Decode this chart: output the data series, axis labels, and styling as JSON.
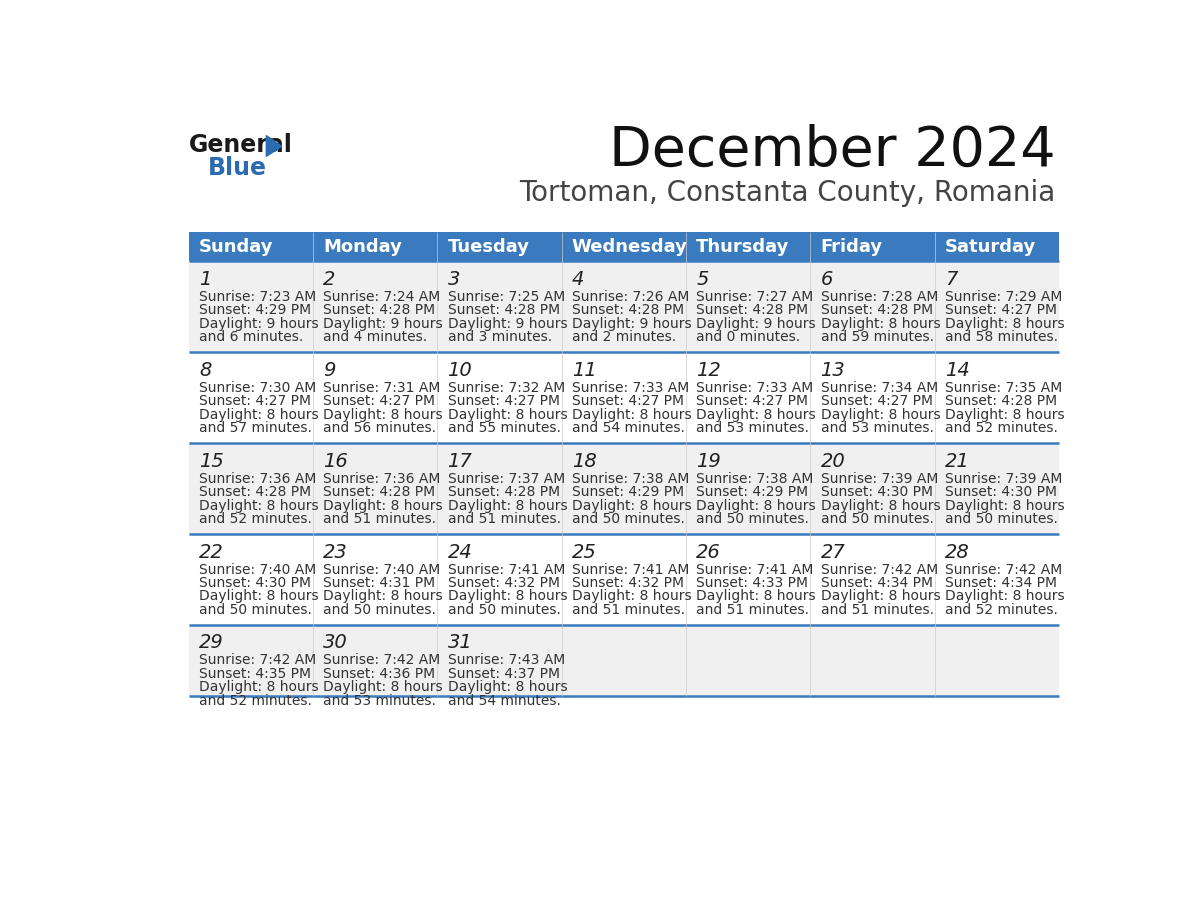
{
  "title": "December 2024",
  "subtitle": "Tortoman, Constanta County, Romania",
  "header_bg": "#3a7abf",
  "header_text": "#ffffff",
  "day_names": [
    "Sunday",
    "Monday",
    "Tuesday",
    "Wednesday",
    "Thursday",
    "Friday",
    "Saturday"
  ],
  "row_bg_odd": "#f0f0f0",
  "row_bg_even": "#ffffff",
  "week_border": "#3a7abf",
  "weeks": [
    {
      "days": [
        {
          "date": 1,
          "sunrise": "7:23 AM",
          "sunset": "4:29 PM",
          "daylight": "9 hours",
          "daylight2": "and 6 minutes."
        },
        {
          "date": 2,
          "sunrise": "7:24 AM",
          "sunset": "4:28 PM",
          "daylight": "9 hours",
          "daylight2": "and 4 minutes."
        },
        {
          "date": 3,
          "sunrise": "7:25 AM",
          "sunset": "4:28 PM",
          "daylight": "9 hours",
          "daylight2": "and 3 minutes."
        },
        {
          "date": 4,
          "sunrise": "7:26 AM",
          "sunset": "4:28 PM",
          "daylight": "9 hours",
          "daylight2": "and 2 minutes."
        },
        {
          "date": 5,
          "sunrise": "7:27 AM",
          "sunset": "4:28 PM",
          "daylight": "9 hours",
          "daylight2": "and 0 minutes."
        },
        {
          "date": 6,
          "sunrise": "7:28 AM",
          "sunset": "4:28 PM",
          "daylight": "8 hours",
          "daylight2": "and 59 minutes."
        },
        {
          "date": 7,
          "sunrise": "7:29 AM",
          "sunset": "4:27 PM",
          "daylight": "8 hours",
          "daylight2": "and 58 minutes."
        }
      ]
    },
    {
      "days": [
        {
          "date": 8,
          "sunrise": "7:30 AM",
          "sunset": "4:27 PM",
          "daylight": "8 hours",
          "daylight2": "and 57 minutes."
        },
        {
          "date": 9,
          "sunrise": "7:31 AM",
          "sunset": "4:27 PM",
          "daylight": "8 hours",
          "daylight2": "and 56 minutes."
        },
        {
          "date": 10,
          "sunrise": "7:32 AM",
          "sunset": "4:27 PM",
          "daylight": "8 hours",
          "daylight2": "and 55 minutes."
        },
        {
          "date": 11,
          "sunrise": "7:33 AM",
          "sunset": "4:27 PM",
          "daylight": "8 hours",
          "daylight2": "and 54 minutes."
        },
        {
          "date": 12,
          "sunrise": "7:33 AM",
          "sunset": "4:27 PM",
          "daylight": "8 hours",
          "daylight2": "and 53 minutes."
        },
        {
          "date": 13,
          "sunrise": "7:34 AM",
          "sunset": "4:27 PM",
          "daylight": "8 hours",
          "daylight2": "and 53 minutes."
        },
        {
          "date": 14,
          "sunrise": "7:35 AM",
          "sunset": "4:28 PM",
          "daylight": "8 hours",
          "daylight2": "and 52 minutes."
        }
      ]
    },
    {
      "days": [
        {
          "date": 15,
          "sunrise": "7:36 AM",
          "sunset": "4:28 PM",
          "daylight": "8 hours",
          "daylight2": "and 52 minutes."
        },
        {
          "date": 16,
          "sunrise": "7:36 AM",
          "sunset": "4:28 PM",
          "daylight": "8 hours",
          "daylight2": "and 51 minutes."
        },
        {
          "date": 17,
          "sunrise": "7:37 AM",
          "sunset": "4:28 PM",
          "daylight": "8 hours",
          "daylight2": "and 51 minutes."
        },
        {
          "date": 18,
          "sunrise": "7:38 AM",
          "sunset": "4:29 PM",
          "daylight": "8 hours",
          "daylight2": "and 50 minutes."
        },
        {
          "date": 19,
          "sunrise": "7:38 AM",
          "sunset": "4:29 PM",
          "daylight": "8 hours",
          "daylight2": "and 50 minutes."
        },
        {
          "date": 20,
          "sunrise": "7:39 AM",
          "sunset": "4:30 PM",
          "daylight": "8 hours",
          "daylight2": "and 50 minutes."
        },
        {
          "date": 21,
          "sunrise": "7:39 AM",
          "sunset": "4:30 PM",
          "daylight": "8 hours",
          "daylight2": "and 50 minutes."
        }
      ]
    },
    {
      "days": [
        {
          "date": 22,
          "sunrise": "7:40 AM",
          "sunset": "4:30 PM",
          "daylight": "8 hours",
          "daylight2": "and 50 minutes."
        },
        {
          "date": 23,
          "sunrise": "7:40 AM",
          "sunset": "4:31 PM",
          "daylight": "8 hours",
          "daylight2": "and 50 minutes."
        },
        {
          "date": 24,
          "sunrise": "7:41 AM",
          "sunset": "4:32 PM",
          "daylight": "8 hours",
          "daylight2": "and 50 minutes."
        },
        {
          "date": 25,
          "sunrise": "7:41 AM",
          "sunset": "4:32 PM",
          "daylight": "8 hours",
          "daylight2": "and 51 minutes."
        },
        {
          "date": 26,
          "sunrise": "7:41 AM",
          "sunset": "4:33 PM",
          "daylight": "8 hours",
          "daylight2": "and 51 minutes."
        },
        {
          "date": 27,
          "sunrise": "7:42 AM",
          "sunset": "4:34 PM",
          "daylight": "8 hours",
          "daylight2": "and 51 minutes."
        },
        {
          "date": 28,
          "sunrise": "7:42 AM",
          "sunset": "4:34 PM",
          "daylight": "8 hours",
          "daylight2": "and 52 minutes."
        }
      ]
    },
    {
      "days": [
        {
          "date": 29,
          "sunrise": "7:42 AM",
          "sunset": "4:35 PM",
          "daylight": "8 hours",
          "daylight2": "and 52 minutes."
        },
        {
          "date": 30,
          "sunrise": "7:42 AM",
          "sunset": "4:36 PM",
          "daylight": "8 hours",
          "daylight2": "and 53 minutes."
        },
        {
          "date": 31,
          "sunrise": "7:43 AM",
          "sunset": "4:37 PM",
          "daylight": "8 hours",
          "daylight2": "and 54 minutes."
        }
      ]
    }
  ],
  "logo_color_general": "#1a1a1a",
  "logo_color_blue": "#2b6cb0",
  "logo_triangle_color": "#2b6cb0",
  "title_fontsize": 40,
  "subtitle_fontsize": 20,
  "header_fontsize": 13,
  "date_fontsize": 14,
  "info_fontsize": 10
}
